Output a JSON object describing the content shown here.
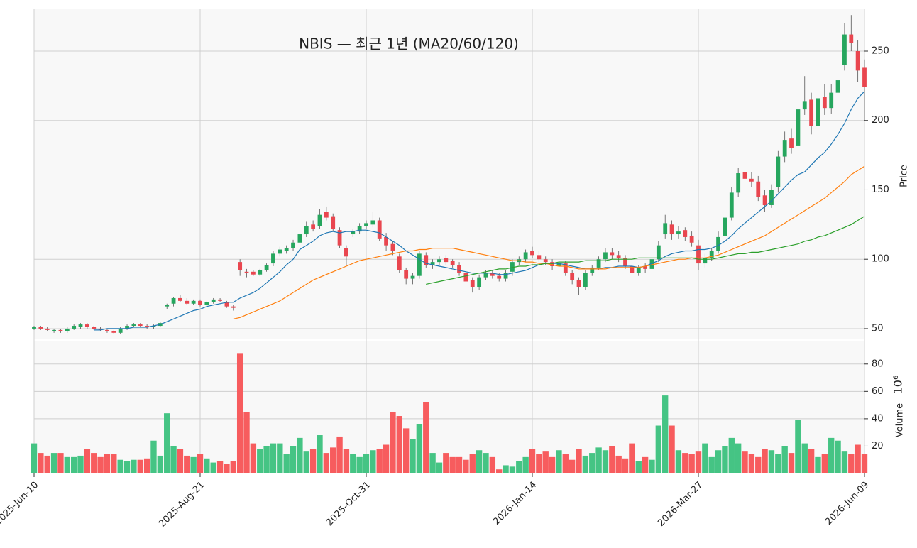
{
  "chart_data": {
    "type": "candlestick",
    "title": "NBIS — 최근 1년 (MA20/60/120)",
    "y_label": "Price",
    "volume_label": "Volume",
    "volume_scale": "10⁶",
    "categories": [
      "2025-Jun-10",
      null,
      null,
      null,
      null,
      null,
      null,
      null,
      null,
      null,
      null,
      null,
      null,
      null,
      null,
      null,
      null,
      null,
      null,
      null,
      null,
      null,
      null,
      null,
      null,
      "2025-Aug-21",
      null,
      null,
      null,
      null,
      null,
      null,
      null,
      null,
      null,
      null,
      null,
      null,
      null,
      null,
      null,
      null,
      null,
      null,
      null,
      null,
      null,
      null,
      null,
      null,
      "2025-Oct-31",
      null,
      null,
      null,
      null,
      null,
      null,
      null,
      null,
      null,
      null,
      null,
      null,
      null,
      null,
      null,
      null,
      null,
      null,
      null,
      null,
      null,
      null,
      null,
      null,
      "2026-Jan-14",
      null,
      null,
      null,
      null,
      null,
      null,
      null,
      null,
      null,
      null,
      null,
      null,
      null,
      null,
      null,
      null,
      null,
      null,
      null,
      null,
      null,
      null,
      null,
      null,
      "2026-Mar-27",
      null,
      null,
      null,
      null,
      null,
      null,
      null,
      null,
      null,
      null,
      null,
      null,
      null,
      null,
      null,
      null,
      null,
      null,
      null,
      null,
      null,
      null,
      null,
      null,
      "2026-Jun-09"
    ],
    "open": [
      50,
      51,
      50,
      48,
      49,
      48,
      50,
      51,
      53,
      51,
      50,
      49,
      48,
      47,
      50,
      52,
      53,
      52,
      51,
      52,
      66,
      68,
      72,
      70,
      68,
      70,
      67,
      69,
      71,
      69,
      66,
      98,
      91,
      91,
      89,
      92,
      97,
      104,
      106,
      108,
      112,
      118,
      125,
      124,
      134,
      131,
      121,
      108,
      118,
      120,
      124,
      125,
      128,
      116,
      111,
      102,
      92,
      86,
      88,
      103,
      96,
      98,
      101,
      99,
      96,
      90,
      85,
      80,
      87,
      90,
      88,
      86,
      91,
      98,
      100,
      106,
      103,
      100,
      98,
      95,
      97,
      90,
      85,
      80,
      90,
      94,
      100,
      105,
      103,
      101,
      95,
      90,
      95,
      93,
      100,
      118,
      125,
      118,
      121,
      117,
      110,
      97,
      101,
      106,
      117,
      130,
      148,
      163,
      158,
      156,
      146,
      139,
      152,
      174,
      187,
      182,
      208,
      215,
      196,
      217,
      209,
      220,
      240,
      262,
      250,
      238
    ],
    "high": [
      52,
      52,
      51,
      50,
      50,
      51,
      53,
      54,
      54,
      52,
      51,
      50,
      49,
      51,
      53,
      54,
      54,
      53,
      53,
      55,
      68,
      73,
      74,
      72,
      71,
      71,
      70,
      72,
      72,
      70,
      67,
      100,
      93,
      92,
      93,
      97,
      106,
      109,
      110,
      114,
      121,
      127,
      128,
      136,
      138,
      133,
      123,
      110,
      122,
      126,
      128,
      134,
      130,
      119,
      113,
      104,
      94,
      90,
      106,
      105,
      100,
      102,
      103,
      100,
      98,
      92,
      87,
      89,
      92,
      92,
      90,
      92,
      100,
      102,
      107,
      109,
      106,
      102,
      100,
      99,
      99,
      92,
      87,
      92,
      96,
      102,
      108,
      108,
      106,
      103,
      97,
      96,
      97,
      102,
      113,
      132,
      128,
      124,
      123,
      120,
      114,
      104,
      108,
      120,
      134,
      152,
      166,
      168,
      163,
      160,
      150,
      154,
      178,
      192,
      194,
      214,
      232,
      220,
      224,
      226,
      226,
      234,
      270,
      276,
      258,
      244
    ],
    "low": [
      49,
      49,
      48,
      47,
      47,
      47,
      49,
      50,
      50,
      49,
      48,
      47,
      46,
      46,
      49,
      51,
      51,
      50,
      50,
      51,
      64,
      66,
      69,
      67,
      67,
      66,
      66,
      68,
      69,
      65,
      63,
      88,
      87,
      88,
      88,
      91,
      95,
      102,
      104,
      106,
      110,
      116,
      120,
      122,
      128,
      120,
      108,
      96,
      116,
      118,
      122,
      123,
      113,
      106,
      103,
      90,
      82,
      82,
      86,
      94,
      93,
      96,
      96,
      94,
      88,
      82,
      76,
      78,
      85,
      86,
      84,
      84,
      88,
      96,
      98,
      101,
      98,
      96,
      92,
      93,
      88,
      82,
      74,
      78,
      88,
      92,
      98,
      100,
      98,
      93,
      86,
      88,
      90,
      91,
      98,
      115,
      114,
      115,
      113,
      109,
      92,
      94,
      99,
      104,
      114,
      128,
      145,
      154,
      152,
      142,
      134,
      137,
      148,
      170,
      176,
      178,
      204,
      190,
      192,
      204,
      205,
      216,
      236,
      250,
      228,
      200
    ],
    "close": [
      51,
      50,
      49,
      49,
      48,
      50,
      52,
      53,
      51,
      50,
      49,
      48,
      47,
      50,
      52,
      53,
      52,
      51,
      52,
      54,
      67,
      72,
      70,
      68,
      70,
      67,
      69,
      71,
      70,
      66,
      65,
      92,
      90,
      89,
      92,
      96,
      104,
      107,
      108,
      112,
      118,
      124,
      122,
      132,
      130,
      122,
      110,
      102,
      120,
      124,
      126,
      128,
      115,
      110,
      106,
      92,
      86,
      88,
      104,
      96,
      98,
      100,
      98,
      96,
      90,
      84,
      80,
      87,
      90,
      88,
      86,
      90,
      98,
      100,
      105,
      103,
      100,
      98,
      95,
      97,
      90,
      85,
      80,
      90,
      94,
      100,
      105,
      103,
      101,
      95,
      90,
      94,
      93,
      100,
      110,
      126,
      118,
      120,
      116,
      112,
      97,
      101,
      106,
      116,
      130,
      148,
      162,
      158,
      156,
      145,
      139,
      150,
      174,
      186,
      180,
      208,
      214,
      196,
      216,
      209,
      220,
      229,
      262,
      256,
      236,
      224
    ],
    "volume": [
      22,
      15,
      13,
      15,
      15,
      12,
      12,
      13,
      18,
      15,
      12,
      14,
      14,
      10,
      9,
      10,
      10,
      11,
      24,
      13,
      44,
      20,
      18,
      13,
      12,
      14,
      11,
      8,
      9,
      7,
      9,
      88,
      45,
      22,
      18,
      20,
      22,
      22,
      14,
      20,
      26,
      16,
      18,
      28,
      15,
      19,
      27,
      18,
      14,
      12,
      14,
      17,
      18,
      21,
      45,
      42,
      33,
      25,
      36,
      52,
      15,
      8,
      15,
      12,
      12,
      10,
      14,
      17,
      15,
      12,
      3,
      6,
      5,
      9,
      12,
      18,
      14,
      16,
      12,
      17,
      14,
      10,
      18,
      13,
      15,
      19,
      17,
      20,
      13,
      11,
      22,
      9,
      12,
      10,
      35,
      57,
      35,
      17,
      15,
      14,
      16,
      22,
      12,
      17,
      20,
      26,
      22,
      16,
      14,
      12,
      18,
      17,
      14,
      20,
      15,
      39,
      22,
      18,
      12,
      14,
      26,
      24,
      16,
      14,
      21,
      14
    ],
    "series": [
      {
        "color": "#1f77b4",
        "values": [
          null,
          null,
          null,
          null,
          null,
          null,
          null,
          null,
          null,
          49,
          49,
          50,
          50,
          50,
          50,
          51,
          51,
          51,
          52,
          53,
          55,
          57,
          59,
          61,
          63,
          64,
          66,
          67,
          68,
          69,
          69,
          72,
          74,
          76,
          79,
          83,
          87,
          91,
          96,
          100,
          107,
          110,
          113,
          117,
          119,
          120,
          119,
          120,
          120,
          121,
          121,
          120,
          119,
          116,
          113,
          110,
          106,
          103,
          100,
          97,
          96,
          95,
          94,
          93,
          92,
          91,
          90,
          90,
          90,
          90,
          89,
          89,
          90,
          91,
          92,
          94,
          96,
          97,
          97,
          97,
          96,
          95,
          94,
          93,
          93,
          93,
          94,
          94,
          95,
          95,
          95,
          94,
          95,
          97,
          99,
          102,
          104,
          105,
          106,
          106,
          107,
          107,
          108,
          110,
          113,
          117,
          122,
          126,
          130,
          134,
          138,
          142,
          147,
          152,
          157,
          161,
          163,
          168,
          173,
          177,
          183,
          190,
          198,
          208,
          216,
          221
        ]
      },
      {
        "color": "#ff7f0e",
        "values": [
          null,
          null,
          null,
          null,
          null,
          null,
          null,
          null,
          null,
          null,
          null,
          null,
          null,
          null,
          null,
          null,
          null,
          null,
          null,
          null,
          null,
          null,
          null,
          null,
          null,
          null,
          null,
          null,
          null,
          null,
          57,
          58,
          60,
          62,
          64,
          66,
          68,
          70,
          73,
          76,
          79,
          82,
          85,
          87,
          89,
          91,
          93,
          95,
          97,
          99,
          100,
          101,
          102,
          103,
          104,
          105,
          106,
          106,
          107,
          107,
          108,
          108,
          108,
          108,
          107,
          106,
          105,
          104,
          103,
          102,
          101,
          100,
          99,
          99,
          98,
          98,
          97,
          97,
          96,
          95,
          95,
          94,
          93,
          93,
          93,
          93,
          93,
          94,
          94,
          94,
          94,
          94,
          95,
          96,
          97,
          98,
          99,
          100,
          100,
          101,
          101,
          101,
          102,
          103,
          105,
          107,
          109,
          111,
          113,
          115,
          117,
          120,
          123,
          126,
          129,
          132,
          135,
          138,
          141,
          144,
          148,
          152,
          156,
          161,
          164,
          167
        ]
      },
      {
        "color": "#2ca02c",
        "values": [
          null,
          null,
          null,
          null,
          null,
          null,
          null,
          null,
          null,
          null,
          null,
          null,
          null,
          null,
          null,
          null,
          null,
          null,
          null,
          null,
          null,
          null,
          null,
          null,
          null,
          null,
          null,
          null,
          null,
          null,
          null,
          null,
          null,
          null,
          null,
          null,
          null,
          null,
          null,
          null,
          null,
          null,
          null,
          null,
          null,
          null,
          null,
          null,
          null,
          null,
          null,
          null,
          null,
          null,
          null,
          null,
          null,
          null,
          null,
          82,
          83,
          84,
          85,
          86,
          87,
          88,
          89,
          90,
          91,
          92,
          93,
          93,
          94,
          95,
          95,
          96,
          96,
          97,
          97,
          98,
          98,
          98,
          98,
          99,
          99,
          99,
          99,
          100,
          100,
          100,
          100,
          101,
          101,
          101,
          101,
          101,
          101,
          101,
          101,
          101,
          100,
          100,
          100,
          101,
          102,
          103,
          104,
          104,
          105,
          105,
          106,
          107,
          108,
          109,
          110,
          111,
          113,
          114,
          116,
          117,
          119,
          121,
          123,
          125,
          128,
          131
        ]
      }
    ],
    "up_color": "#26a65e",
    "down_color": "#e9464f",
    "volume_up_color": "#45c484",
    "volume_down_color": "#f75c5e",
    "ylim": [
      42.3,
      280.7
    ],
    "yticks": [
      50,
      100,
      150,
      200,
      250
    ],
    "volume_ylim": [
      0,
      97
    ],
    "volume_yticks": [
      20,
      40,
      60,
      80
    ],
    "grid": true
  }
}
